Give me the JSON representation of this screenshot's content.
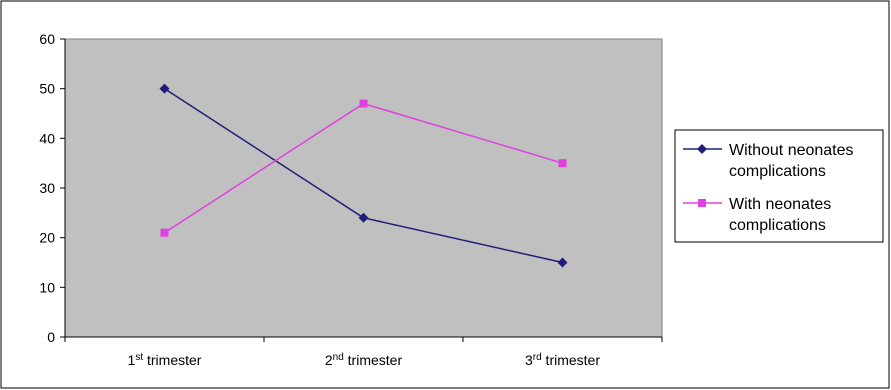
{
  "chart_data": {
    "type": "line",
    "categories": [
      {
        "num": "1",
        "sup": "st",
        "rest": " trimester"
      },
      {
        "num": "2",
        "sup": "nd",
        "rest": " trimester"
      },
      {
        "num": "3",
        "sup": "rd",
        "rest": " trimester"
      }
    ],
    "series": [
      {
        "name": [
          "Without neonates",
          "complications"
        ],
        "values": [
          50,
          24,
          15
        ],
        "color": "#1f1f7a",
        "marker": "diamond"
      },
      {
        "name": [
          "With neonates",
          "complications"
        ],
        "values": [
          21,
          47,
          35
        ],
        "color": "#e040e0",
        "marker": "square"
      }
    ],
    "ylim": [
      0,
      60
    ],
    "yticks": [
      0,
      10,
      20,
      30,
      40,
      50,
      60
    ],
    "grid": false,
    "plot_background": "#c0c0c0",
    "legend_position": "right",
    "title": "",
    "xlabel": "",
    "ylabel": ""
  }
}
